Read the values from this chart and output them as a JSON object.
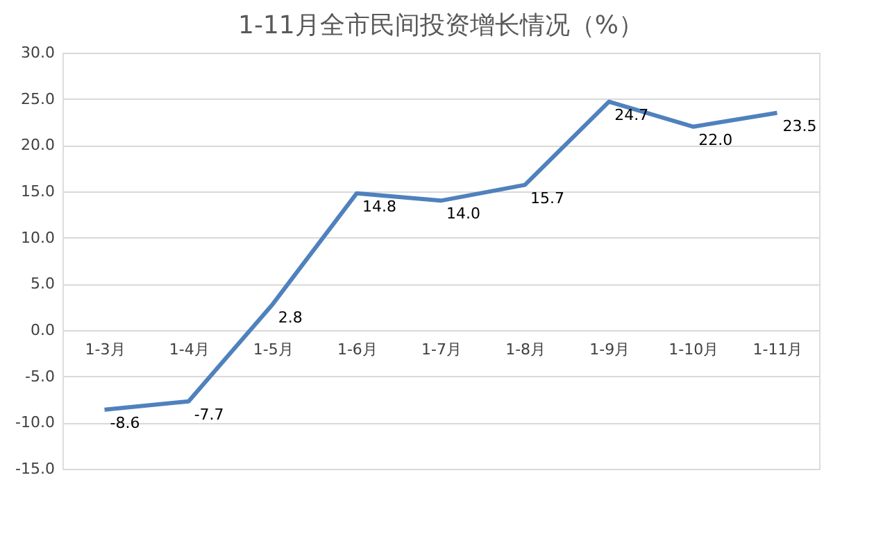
{
  "chart_data": {
    "type": "line",
    "title": "1-11月全市民间投资增长情况（%）",
    "categories": [
      "1-3月",
      "1-4月",
      "1-5月",
      "1-6月",
      "1-7月",
      "1-8月",
      "1-9月",
      "1-10月",
      "1-11月"
    ],
    "series": [
      {
        "color": "#4f81bd",
        "values": [
          -8.6,
          -7.7,
          2.8,
          14.8,
          14.0,
          15.7,
          24.7,
          22.0,
          23.5
        ],
        "value_labels": [
          "-8.6",
          "-7.7",
          "2.8",
          "14.8",
          "14.0",
          "15.7",
          "24.7",
          "22.0",
          "23.5"
        ]
      }
    ],
    "ylim": [
      -15,
      30
    ],
    "yticks": [
      {
        "value": -15,
        "label": "-15.0"
      },
      {
        "value": -10,
        "label": "-10.0"
      },
      {
        "value": -5,
        "label": "-5.0"
      },
      {
        "value": 0,
        "label": "0.0"
      },
      {
        "value": 5,
        "label": "5.0"
      },
      {
        "value": 10,
        "label": "10.0"
      },
      {
        "value": 15,
        "label": "15.0"
      },
      {
        "value": 20,
        "label": "20.0"
      },
      {
        "value": 25,
        "label": "25.0"
      },
      {
        "value": 30,
        "label": "30.0"
      }
    ],
    "grid": "y",
    "marker": "none",
    "line_style": "solid"
  }
}
